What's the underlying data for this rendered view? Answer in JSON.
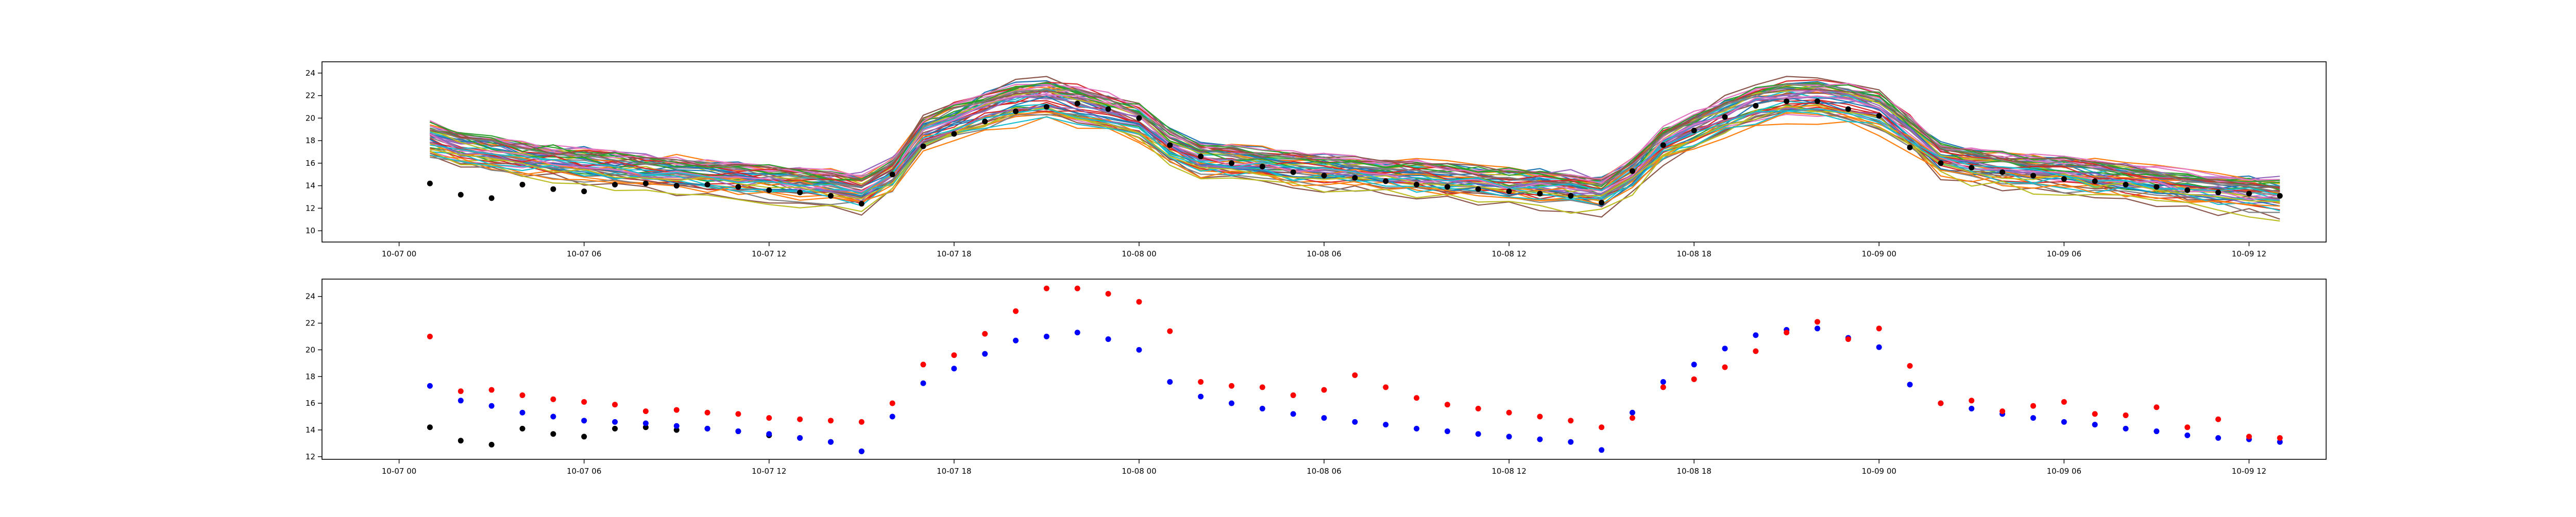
{
  "chart_data": [
    {
      "type": "line",
      "ylim": [
        9,
        25
      ],
      "yticks": [
        10,
        12,
        14,
        16,
        18,
        20,
        22,
        24
      ],
      "xlim_hours": [
        -2.5,
        62.5
      ],
      "xticks": [
        {
          "h": 0,
          "label": "10-07 00"
        },
        {
          "h": 6,
          "label": "10-07 06"
        },
        {
          "h": 12,
          "label": "10-07 12"
        },
        {
          "h": 18,
          "label": "10-07 18"
        },
        {
          "h": 24,
          "label": "10-08 00"
        },
        {
          "h": 30,
          "label": "10-08 06"
        },
        {
          "h": 36,
          "label": "10-08 12"
        },
        {
          "h": 42,
          "label": "10-08 18"
        },
        {
          "h": 48,
          "label": "10-09 00"
        },
        {
          "h": 54,
          "label": "10-09 06"
        },
        {
          "h": 60,
          "label": "10-09 12"
        }
      ],
      "x_hours": [
        1,
        2,
        3,
        4,
        5,
        6,
        7,
        8,
        9,
        10,
        11,
        12,
        13,
        14,
        15,
        16,
        17,
        18,
        19,
        20,
        21,
        22,
        23,
        24,
        25,
        26,
        27,
        28,
        29,
        30,
        31,
        32,
        33,
        34,
        35,
        36,
        37,
        38,
        39,
        40,
        41,
        42,
        43,
        44,
        45,
        46,
        47,
        48,
        49,
        50,
        51,
        52,
        53,
        54,
        55,
        56,
        57,
        58,
        59,
        60,
        61
      ],
      "ensemble_count": 50,
      "ensemble_spread": 1.4,
      "ensemble_mean": [
        18.0,
        17.2,
        16.8,
        16.3,
        16.1,
        15.8,
        15.5,
        15.2,
        15.0,
        14.8,
        14.6,
        14.4,
        14.1,
        13.9,
        13.5,
        15.0,
        18.5,
        19.5,
        20.5,
        21.3,
        21.6,
        21.0,
        20.3,
        19.5,
        17.5,
        16.3,
        16.0,
        15.8,
        15.5,
        15.3,
        15.1,
        14.9,
        14.7,
        14.5,
        14.3,
        14.1,
        13.9,
        13.7,
        13.3,
        15.0,
        17.5,
        18.8,
        20.0,
        21.0,
        21.5,
        21.6,
        21.2,
        20.5,
        18.5,
        16.3,
        15.8,
        15.5,
        15.2,
        15.0,
        14.7,
        14.4,
        14.1,
        13.8,
        13.5,
        13.3,
        13.1
      ],
      "series": [
        {
          "name": "",
          "color": "#000000",
          "kind": "points",
          "x": [
            1,
            2,
            3,
            4,
            5,
            6,
            7,
            8,
            9,
            10,
            11,
            12,
            13,
            14,
            15,
            16,
            17,
            18,
            19,
            20,
            21,
            22,
            23,
            24,
            25,
            26,
            27,
            28,
            29,
            30,
            31,
            32,
            33,
            34,
            35,
            36,
            37,
            38,
            39,
            40,
            41,
            42,
            43,
            44,
            45,
            46,
            47,
            48,
            49,
            50,
            51,
            52,
            53,
            54,
            55,
            56,
            57,
            58,
            59,
            60,
            61
          ],
          "values": [
            14.2,
            13.2,
            12.9,
            14.1,
            13.7,
            13.5,
            14.1,
            14.2,
            14.0,
            14.1,
            13.9,
            13.6,
            13.4,
            13.1,
            12.4,
            15.0,
            17.5,
            18.6,
            19.7,
            20.6,
            21.0,
            21.3,
            20.8,
            20.0,
            17.6,
            16.6,
            16.0,
            15.7,
            15.2,
            14.9,
            14.7,
            14.4,
            14.1,
            13.9,
            13.7,
            13.5,
            13.3,
            13.1,
            12.5,
            15.3,
            17.6,
            18.9,
            20.1,
            21.1,
            21.5,
            21.5,
            20.8,
            20.2,
            17.4,
            16.0,
            15.6,
            15.2,
            14.9,
            14.6,
            14.4,
            14.1,
            13.9,
            13.6,
            13.4,
            13.3,
            13.1
          ]
        }
      ]
    },
    {
      "type": "scatter",
      "ylim": [
        11.8,
        25.3
      ],
      "yticks": [
        12,
        14,
        16,
        18,
        20,
        22,
        24
      ],
      "xlim_hours": [
        -2.5,
        62.5
      ],
      "xticks": [
        {
          "h": 0,
          "label": "10-07 00"
        },
        {
          "h": 6,
          "label": "10-07 06"
        },
        {
          "h": 12,
          "label": "10-07 12"
        },
        {
          "h": 18,
          "label": "10-07 18"
        },
        {
          "h": 24,
          "label": "10-08 00"
        },
        {
          "h": 30,
          "label": "10-08 06"
        },
        {
          "h": 36,
          "label": "10-08 12"
        },
        {
          "h": 42,
          "label": "10-08 18"
        },
        {
          "h": 48,
          "label": "10-09 00"
        },
        {
          "h": 54,
          "label": "10-09 06"
        },
        {
          "h": 60,
          "label": "10-09 12"
        }
      ],
      "series": [
        {
          "name": "",
          "color": "#000000",
          "x": [
            1,
            2,
            3,
            4,
            5,
            6,
            7,
            8,
            9,
            10,
            11,
            12,
            13,
            14,
            15
          ],
          "values": [
            14.2,
            13.2,
            12.9,
            14.1,
            13.7,
            13.5,
            14.1,
            14.2,
            14.0,
            14.1,
            13.9,
            13.6,
            13.4,
            13.1,
            12.4
          ]
        },
        {
          "name": "",
          "color": "#0000ff",
          "x": [
            1,
            2,
            3,
            4,
            5,
            6,
            7,
            8,
            9,
            10,
            11,
            12,
            13,
            14,
            15,
            16,
            17,
            18,
            19,
            20,
            21,
            22,
            23,
            24,
            25,
            26,
            27,
            28,
            29,
            30,
            31,
            32,
            33,
            34,
            35,
            36,
            37,
            38,
            39,
            40,
            41,
            42,
            43,
            44,
            45,
            46,
            47,
            48,
            49,
            50,
            51,
            52,
            53,
            54,
            55,
            56,
            57,
            58,
            59,
            60,
            61
          ],
          "values": [
            17.3,
            16.2,
            15.8,
            15.3,
            15.0,
            14.7,
            14.6,
            14.5,
            14.3,
            14.1,
            13.9,
            13.7,
            13.4,
            13.1,
            12.4,
            15.0,
            17.5,
            18.6,
            19.7,
            20.7,
            21.0,
            21.3,
            20.8,
            20.0,
            17.6,
            16.5,
            16.0,
            15.6,
            15.2,
            14.9,
            14.6,
            14.4,
            14.1,
            13.9,
            13.7,
            13.5,
            13.3,
            13.1,
            12.5,
            15.3,
            17.6,
            18.9,
            20.1,
            21.1,
            21.5,
            21.6,
            20.9,
            20.2,
            17.4,
            16.0,
            15.6,
            15.2,
            14.9,
            14.6,
            14.4,
            14.1,
            13.9,
            13.6,
            13.4,
            13.3,
            13.1
          ]
        },
        {
          "name": "",
          "color": "#ff0000",
          "x": [
            1,
            2,
            3,
            4,
            5,
            6,
            7,
            8,
            9,
            10,
            11,
            12,
            13,
            14,
            15,
            16,
            17,
            18,
            19,
            20,
            21,
            22,
            23,
            24,
            25,
            26,
            27,
            28,
            29,
            30,
            31,
            32,
            33,
            34,
            35,
            36,
            37,
            38,
            39,
            40,
            41,
            42,
            43,
            44,
            45,
            46,
            47,
            48,
            49,
            50,
            51,
            52,
            53,
            54,
            55,
            56,
            57,
            58,
            59,
            60,
            61
          ],
          "values": [
            21.0,
            16.9,
            17.0,
            16.6,
            16.3,
            16.1,
            15.9,
            15.4,
            15.5,
            15.3,
            15.2,
            14.9,
            14.8,
            14.7,
            14.6,
            16.0,
            18.9,
            19.6,
            21.2,
            22.9,
            24.6,
            24.6,
            24.2,
            23.6,
            21.4,
            17.6,
            17.3,
            17.2,
            16.6,
            17.0,
            18.1,
            17.2,
            16.4,
            15.9,
            15.6,
            15.3,
            15.0,
            14.7,
            14.2,
            14.9,
            17.2,
            17.8,
            18.7,
            19.9,
            21.3,
            22.1,
            20.8,
            21.6,
            18.8,
            16.0,
            16.2,
            15.4,
            15.8,
            16.1,
            15.2,
            15.1,
            15.7,
            14.2,
            14.8,
            13.5,
            13.4
          ]
        }
      ]
    }
  ]
}
